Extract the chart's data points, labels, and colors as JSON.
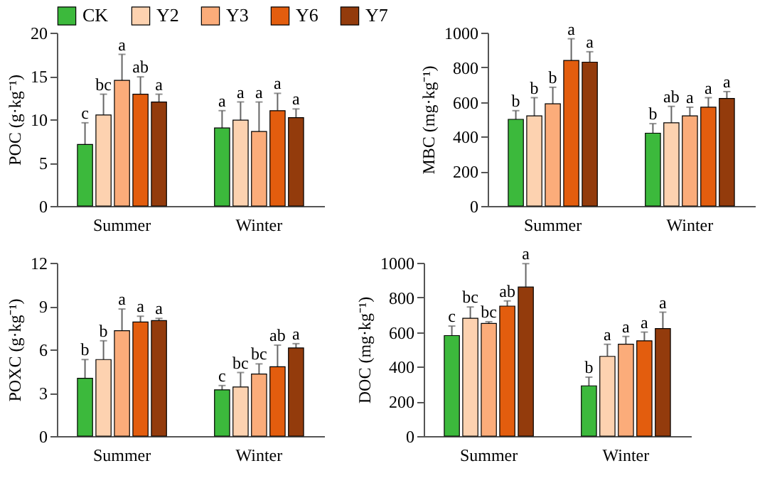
{
  "chart_data": [
    {
      "type": "bar",
      "ylabel": "POC (g·kg⁻¹)",
      "categories": [
        "Summer",
        "Winter"
      ],
      "ylim": [
        0,
        20
      ],
      "yticks": [
        0,
        5,
        10,
        15,
        20
      ],
      "grid": false,
      "legend": "top",
      "series": [
        {
          "name": "CK",
          "color": "#3cb93c",
          "values": [
            7.1,
            9.0
          ],
          "errors": [
            2.5,
            2.0
          ],
          "value_labels": [
            "c",
            "a"
          ]
        },
        {
          "name": "Y2",
          "color": "#fdd2b0",
          "values": [
            10.5,
            9.9
          ],
          "errors": [
            2.4,
            2.1
          ],
          "value_labels": [
            "bc",
            "a"
          ]
        },
        {
          "name": "Y3",
          "color": "#fbac7a",
          "values": [
            14.5,
            8.6
          ],
          "errors": [
            3.0,
            3.4
          ],
          "value_labels": [
            "a",
            "a"
          ]
        },
        {
          "name": "Y6",
          "color": "#e35d0e",
          "values": [
            12.9,
            11.0
          ],
          "errors": [
            2.0,
            2.0
          ],
          "value_labels": [
            "ab",
            "a"
          ]
        },
        {
          "name": "Y7",
          "color": "#933b0c",
          "values": [
            12.0,
            10.2
          ],
          "errors": [
            0.9,
            1.0
          ],
          "value_labels": [
            "a",
            "a"
          ]
        }
      ]
    },
    {
      "type": "bar",
      "ylabel": "MBC (mg·kg⁻¹)",
      "categories": [
        "Summer",
        "Winter"
      ],
      "ylim": [
        0,
        1000
      ],
      "yticks": [
        0,
        200,
        400,
        600,
        800,
        1000
      ],
      "grid": false,
      "series": [
        {
          "color": "#3cb93c",
          "values": [
            500,
            420
          ],
          "errors": [
            50,
            55
          ],
          "value_labels": [
            "b",
            "b"
          ]
        },
        {
          "color": "#fdd2b0",
          "values": [
            520,
            480
          ],
          "errors": [
            105,
            95
          ],
          "value_labels": [
            "b",
            "ab"
          ]
        },
        {
          "color": "#fbac7a",
          "values": [
            590,
            520
          ],
          "errors": [
            95,
            50
          ],
          "value_labels": [
            "b",
            "a"
          ]
        },
        {
          "color": "#e35d0e",
          "values": [
            840,
            570
          ],
          "errors": [
            125,
            55
          ],
          "value_labels": [
            "a",
            "a"
          ]
        },
        {
          "color": "#933b0c",
          "values": [
            830,
            620
          ],
          "errors": [
            60,
            40
          ],
          "value_labels": [
            "a",
            "a"
          ]
        }
      ]
    },
    {
      "type": "bar",
      "ylabel": "POXC (g·kg⁻¹)",
      "categories": [
        "Summer",
        "Winter"
      ],
      "ylim": [
        0,
        12
      ],
      "yticks": [
        0,
        3,
        6,
        9,
        12
      ],
      "grid": false,
      "series": [
        {
          "color": "#3cb93c",
          "values": [
            4.0,
            3.2
          ],
          "errors": [
            1.3,
            0.3
          ],
          "value_labels": [
            "b",
            "c"
          ]
        },
        {
          "color": "#fdd2b0",
          "values": [
            5.3,
            3.4
          ],
          "errors": [
            1.3,
            1.0
          ],
          "value_labels": [
            "b",
            "bc"
          ]
        },
        {
          "color": "#fbac7a",
          "values": [
            7.3,
            4.3
          ],
          "errors": [
            1.5,
            0.7
          ],
          "value_labels": [
            "a",
            "bc"
          ]
        },
        {
          "color": "#e35d0e",
          "values": [
            7.9,
            4.8
          ],
          "errors": [
            0.4,
            1.5
          ],
          "value_labels": [
            "a",
            "ab"
          ]
        },
        {
          "color": "#933b0c",
          "values": [
            8.0,
            6.1
          ],
          "errors": [
            0.15,
            0.3
          ],
          "value_labels": [
            "a",
            "a"
          ]
        }
      ]
    },
    {
      "type": "bar",
      "ylabel": "DOC (mg·kg⁻¹)",
      "categories": [
        "Summer",
        "Winter"
      ],
      "ylim": [
        0,
        1000
      ],
      "yticks": [
        0,
        200,
        400,
        600,
        800,
        1000
      ],
      "grid": false,
      "series": [
        {
          "color": "#3cb93c",
          "values": [
            580,
            290
          ],
          "errors": [
            55,
            50
          ],
          "value_labels": [
            "c",
            "b"
          ]
        },
        {
          "color": "#fdd2b0",
          "values": [
            680,
            460
          ],
          "errors": [
            65,
            70
          ],
          "value_labels": [
            "bc",
            "a"
          ]
        },
        {
          "color": "#fbac7a",
          "values": [
            650,
            530
          ],
          "errors": [
            10,
            45
          ],
          "value_labels": [
            "bc",
            "a"
          ]
        },
        {
          "color": "#e35d0e",
          "values": [
            750,
            550
          ],
          "errors": [
            30,
            50
          ],
          "value_labels": [
            "ab",
            "a"
          ]
        },
        {
          "color": "#933b0c",
          "values": [
            860,
            620
          ],
          "errors": [
            135,
            95
          ],
          "value_labels": [
            "a",
            "a"
          ]
        }
      ]
    }
  ]
}
